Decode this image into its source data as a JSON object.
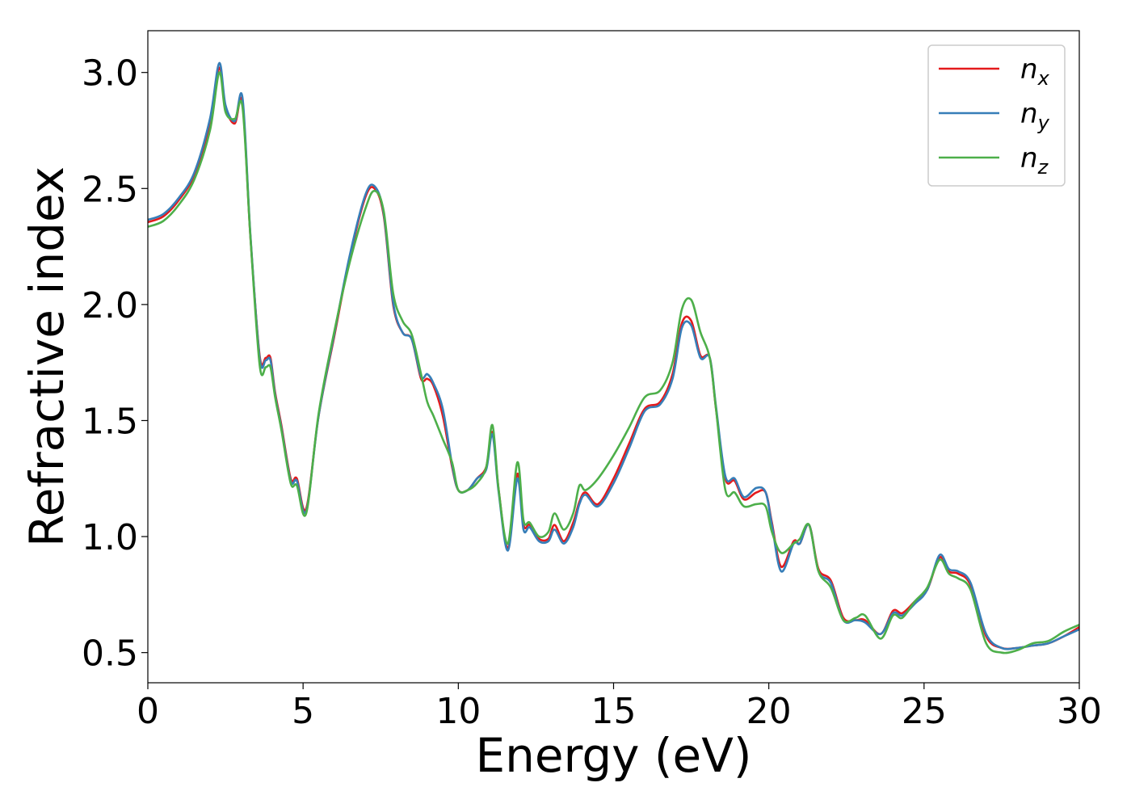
{
  "chart_data": {
    "type": "line",
    "title": "",
    "xlabel": "Energy (eV)",
    "ylabel": "Refractive index",
    "xlim": [
      0,
      30
    ],
    "ylim": [
      0.37,
      3.18
    ],
    "xticks": [
      0,
      5,
      10,
      15,
      20,
      25,
      30
    ],
    "xtick_labels": [
      "0",
      "5",
      "10",
      "15",
      "20",
      "25",
      "30"
    ],
    "yticks": [
      0.5,
      1.0,
      1.5,
      2.0,
      2.5,
      3.0
    ],
    "ytick_labels": [
      "0.5",
      "1.0",
      "1.5",
      "2.0",
      "2.5",
      "3.0"
    ],
    "grid": false,
    "legend_position": "top-right",
    "colors": {
      "n_x": "#e41a1c",
      "n_y": "#377eb8",
      "n_z": "#4daf4a"
    },
    "series": [
      {
        "name": "n_x",
        "label_base": "n",
        "label_sub": "x",
        "x": [
          0,
          0.5,
          1.0,
          1.5,
          2.0,
          2.3,
          2.5,
          2.8,
          3.05,
          3.3,
          3.6,
          3.8,
          3.95,
          4.1,
          4.3,
          4.6,
          4.8,
          5.1,
          5.5,
          6.0,
          6.5,
          7.0,
          7.3,
          7.6,
          7.9,
          8.2,
          8.5,
          8.8,
          9.0,
          9.2,
          9.5,
          9.8,
          10.0,
          10.3,
          10.6,
          10.9,
          11.1,
          11.3,
          11.6,
          11.9,
          12.1,
          12.3,
          12.6,
          12.9,
          13.1,
          13.4,
          13.7,
          13.9,
          14.1,
          14.5,
          15.0,
          15.5,
          16.0,
          16.5,
          16.9,
          17.2,
          17.5,
          17.8,
          18.1,
          18.3,
          18.6,
          18.9,
          19.2,
          19.6,
          19.9,
          20.1,
          20.4,
          20.8,
          21.0,
          21.3,
          21.6,
          22.0,
          22.4,
          22.8,
          23.1,
          23.6,
          24.0,
          24.3,
          24.7,
          25.1,
          25.5,
          25.8,
          26.1,
          26.5,
          27.0,
          27.5,
          28.0,
          28.5,
          29.0,
          29.5,
          30.0
        ],
        "y": [
          2.355,
          2.38,
          2.45,
          2.56,
          2.78,
          3.02,
          2.85,
          2.78,
          2.87,
          2.3,
          1.78,
          1.77,
          1.77,
          1.62,
          1.48,
          1.25,
          1.25,
          1.12,
          1.52,
          1.86,
          2.2,
          2.46,
          2.5,
          2.38,
          2.0,
          1.88,
          1.85,
          1.68,
          1.68,
          1.65,
          1.52,
          1.3,
          1.2,
          1.2,
          1.25,
          1.3,
          1.45,
          1.2,
          0.95,
          1.27,
          1.05,
          1.05,
          0.99,
          0.99,
          1.05,
          0.98,
          1.06,
          1.15,
          1.19,
          1.14,
          1.25,
          1.4,
          1.55,
          1.58,
          1.7,
          1.92,
          1.93,
          1.78,
          1.77,
          1.55,
          1.25,
          1.24,
          1.16,
          1.19,
          1.19,
          1.06,
          0.87,
          0.98,
          0.97,
          1.05,
          0.86,
          0.81,
          0.65,
          0.64,
          0.64,
          0.58,
          0.68,
          0.67,
          0.72,
          0.77,
          0.91,
          0.85,
          0.84,
          0.79,
          0.57,
          0.52,
          0.52,
          0.53,
          0.54,
          0.57,
          0.61
        ]
      },
      {
        "name": "n_y",
        "label_base": "n",
        "label_sub": "y",
        "x": [
          0,
          0.5,
          1.0,
          1.5,
          2.0,
          2.3,
          2.5,
          2.8,
          3.05,
          3.3,
          3.6,
          3.8,
          3.95,
          4.1,
          4.3,
          4.6,
          4.8,
          5.1,
          5.5,
          6.0,
          6.5,
          7.0,
          7.3,
          7.6,
          7.9,
          8.2,
          8.5,
          8.8,
          9.0,
          9.2,
          9.5,
          9.8,
          10.0,
          10.3,
          10.6,
          10.9,
          11.1,
          11.3,
          11.6,
          11.9,
          12.1,
          12.3,
          12.6,
          12.9,
          13.1,
          13.4,
          13.7,
          13.9,
          14.1,
          14.5,
          15.0,
          15.5,
          16.0,
          16.5,
          16.9,
          17.2,
          17.5,
          17.8,
          18.1,
          18.3,
          18.6,
          18.9,
          19.2,
          19.6,
          19.9,
          20.1,
          20.4,
          20.8,
          21.0,
          21.3,
          21.6,
          22.0,
          22.4,
          22.8,
          23.1,
          23.6,
          24.0,
          24.3,
          24.7,
          25.1,
          25.5,
          25.8,
          26.1,
          26.5,
          27.0,
          27.5,
          28.0,
          28.5,
          29.0,
          29.5,
          30.0
        ],
        "y": [
          2.365,
          2.39,
          2.46,
          2.57,
          2.8,
          3.04,
          2.86,
          2.79,
          2.89,
          2.31,
          1.77,
          1.76,
          1.76,
          1.61,
          1.47,
          1.24,
          1.24,
          1.11,
          1.52,
          1.87,
          2.21,
          2.47,
          2.51,
          2.39,
          2.01,
          1.88,
          1.85,
          1.69,
          1.7,
          1.66,
          1.55,
          1.31,
          1.2,
          1.2,
          1.25,
          1.29,
          1.44,
          1.19,
          0.94,
          1.25,
          1.03,
          1.04,
          0.98,
          0.98,
          1.03,
          0.97,
          1.04,
          1.14,
          1.18,
          1.13,
          1.23,
          1.38,
          1.54,
          1.57,
          1.68,
          1.9,
          1.91,
          1.77,
          1.77,
          1.56,
          1.26,
          1.25,
          1.17,
          1.21,
          1.19,
          1.05,
          0.85,
          0.97,
          0.97,
          1.05,
          0.85,
          0.8,
          0.64,
          0.64,
          0.63,
          0.58,
          0.67,
          0.66,
          0.71,
          0.77,
          0.92,
          0.86,
          0.85,
          0.8,
          0.58,
          0.52,
          0.52,
          0.53,
          0.54,
          0.57,
          0.6
        ]
      },
      {
        "name": "n_z",
        "label_base": "n",
        "label_sub": "z",
        "x": [
          0,
          0.5,
          1.0,
          1.5,
          2.0,
          2.3,
          2.5,
          2.8,
          3.05,
          3.3,
          3.6,
          3.8,
          3.95,
          4.1,
          4.3,
          4.6,
          4.8,
          5.1,
          5.5,
          6.0,
          6.5,
          7.0,
          7.3,
          7.6,
          7.9,
          8.2,
          8.5,
          8.8,
          9.0,
          9.2,
          9.5,
          9.8,
          10.0,
          10.3,
          10.6,
          10.9,
          11.1,
          11.3,
          11.6,
          11.9,
          12.1,
          12.3,
          12.6,
          12.9,
          13.1,
          13.4,
          13.7,
          13.9,
          14.1,
          14.5,
          15.0,
          15.5,
          16.0,
          16.5,
          16.9,
          17.2,
          17.5,
          17.8,
          18.1,
          18.3,
          18.6,
          18.9,
          19.2,
          19.6,
          19.9,
          20.1,
          20.4,
          20.8,
          21.0,
          21.3,
          21.6,
          22.0,
          22.4,
          22.8,
          23.1,
          23.6,
          24.0,
          24.3,
          24.7,
          25.1,
          25.5,
          25.8,
          26.1,
          26.5,
          27.0,
          27.5,
          28.0,
          28.5,
          29.0,
          29.5,
          30.0
        ],
        "y": [
          2.335,
          2.36,
          2.43,
          2.54,
          2.75,
          3.0,
          2.83,
          2.8,
          2.85,
          2.3,
          1.74,
          1.73,
          1.73,
          1.6,
          1.46,
          1.23,
          1.22,
          1.1,
          1.53,
          1.88,
          2.18,
          2.41,
          2.49,
          2.4,
          2.05,
          1.93,
          1.87,
          1.7,
          1.58,
          1.52,
          1.42,
          1.32,
          1.2,
          1.2,
          1.23,
          1.3,
          1.48,
          1.2,
          0.97,
          1.32,
          1.07,
          1.06,
          1.0,
          1.02,
          1.1,
          1.03,
          1.1,
          1.22,
          1.2,
          1.25,
          1.35,
          1.47,
          1.6,
          1.63,
          1.75,
          1.98,
          2.02,
          1.88,
          1.77,
          1.55,
          1.2,
          1.19,
          1.13,
          1.14,
          1.13,
          1.02,
          0.93,
          0.97,
          0.99,
          1.05,
          0.85,
          0.78,
          0.64,
          0.65,
          0.66,
          0.56,
          0.66,
          0.65,
          0.72,
          0.78,
          0.9,
          0.84,
          0.82,
          0.77,
          0.54,
          0.5,
          0.51,
          0.54,
          0.55,
          0.59,
          0.62
        ]
      }
    ]
  }
}
